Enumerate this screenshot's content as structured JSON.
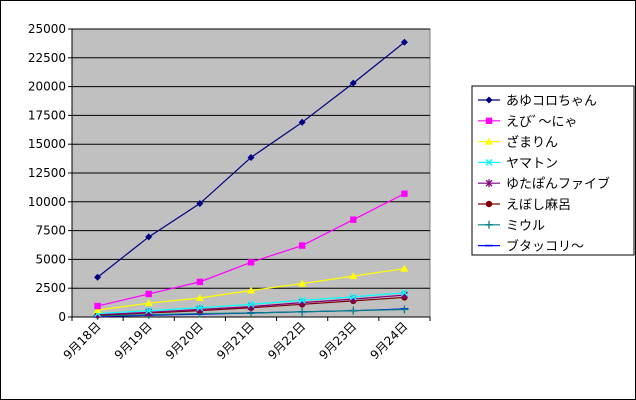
{
  "chart_data": {
    "type": "line",
    "title": "",
    "xlabel": "",
    "ylabel": "",
    "categories": [
      "9月18日",
      "9月19日",
      "9月20日",
      "9月21日",
      "9月22日",
      "9月23日",
      "9月24日"
    ],
    "ylim": [
      0,
      25000
    ],
    "yticks": [
      0,
      2500,
      5000,
      7500,
      10000,
      12500,
      15000,
      17500,
      20000,
      22500,
      25000
    ],
    "grid": true,
    "legend_position": "right",
    "plot_background": "#c0c0c0",
    "series": [
      {
        "name": "あゆコロちゃん",
        "color": "#000080",
        "marker": "diamond",
        "values": [
          3450,
          6950,
          9850,
          13850,
          16900,
          20300,
          23850
        ]
      },
      {
        "name": "えびﾞ〜にゃ",
        "color": "#ff00ff",
        "marker": "square",
        "values": [
          950,
          2000,
          3050,
          4750,
          6200,
          8450,
          10700
        ]
      },
      {
        "name": "ざまりん",
        "color": "#ffff00",
        "marker": "triangle",
        "values": [
          600,
          1200,
          1650,
          2300,
          2900,
          3550,
          4200
        ]
      },
      {
        "name": "ヤマトン",
        "color": "#00ffff",
        "marker": "x",
        "values": [
          300,
          550,
          800,
          1100,
          1450,
          1750,
          2100
        ]
      },
      {
        "name": "ゆたぽんファイブ",
        "color": "#800080",
        "marker": "star",
        "values": [
          200,
          400,
          650,
          900,
          1250,
          1550,
          1900
        ]
      },
      {
        "name": "えぼし麻呂",
        "color": "#800000",
        "marker": "circle",
        "values": [
          150,
          350,
          550,
          800,
          1100,
          1400,
          1700
        ]
      },
      {
        "name": "ミウル",
        "color": "#008080",
        "marker": "plus",
        "values": [
          100,
          200,
          300,
          350,
          450,
          550,
          650
        ]
      },
      {
        "name": "ブタッコリ〜",
        "color": "#0000ff",
        "marker": "dash",
        "values": [
          50,
          150,
          250,
          350,
          450,
          550,
          700
        ]
      }
    ]
  }
}
